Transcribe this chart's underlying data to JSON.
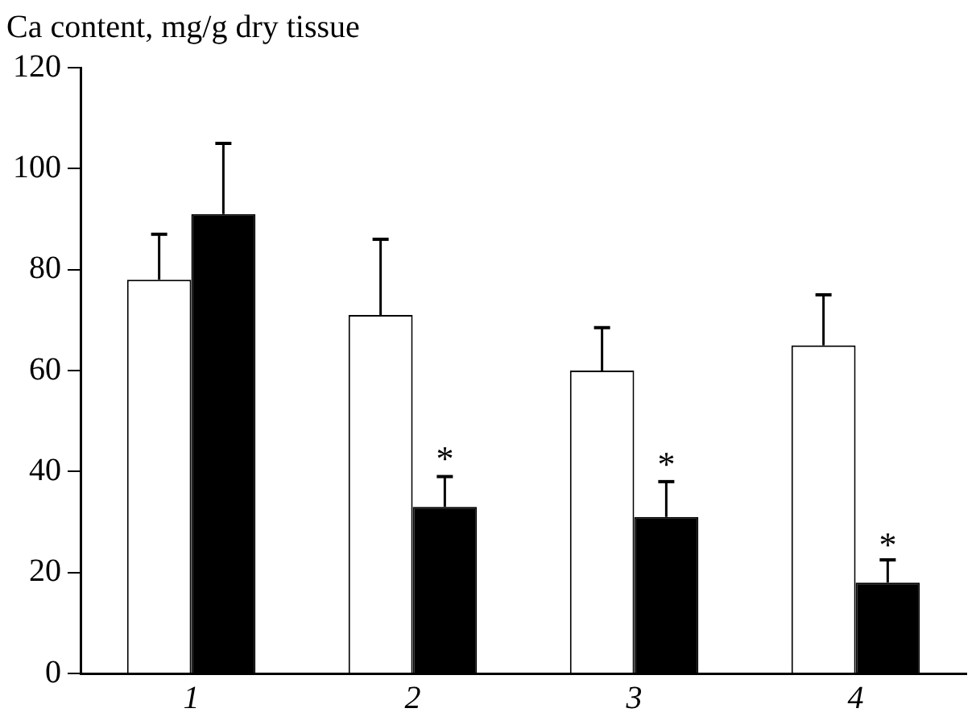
{
  "chart_data": {
    "type": "bar",
    "ylabel": "Ca content, mg/g dry tissue",
    "categories": [
      "1",
      "2",
      "3",
      "4"
    ],
    "series": [
      {
        "color": "#ffffff",
        "values": [
          78,
          71,
          60,
          65
        ],
        "errors": [
          [
            78,
            87
          ],
          [
            71,
            86
          ],
          [
            60,
            68.5
          ],
          [
            65,
            75
          ]
        ]
      },
      {
        "color": "#000000",
        "values": [
          91,
          33,
          31,
          18
        ],
        "errors": [
          [
            91,
            105
          ],
          [
            33,
            39
          ],
          [
            31,
            38
          ],
          [
            18,
            22.5
          ]
        ]
      }
    ],
    "ylim": [
      0,
      120
    ],
    "yticks": [
      0,
      20,
      40,
      60,
      80,
      100,
      120
    ],
    "grid": false,
    "legend": false,
    "annotations": [
      {
        "text": "*",
        "x": "2",
        "y": 42
      },
      {
        "text": "*",
        "x": "3",
        "y": 41
      },
      {
        "text": "*",
        "x": "4",
        "y": 25
      }
    ]
  }
}
